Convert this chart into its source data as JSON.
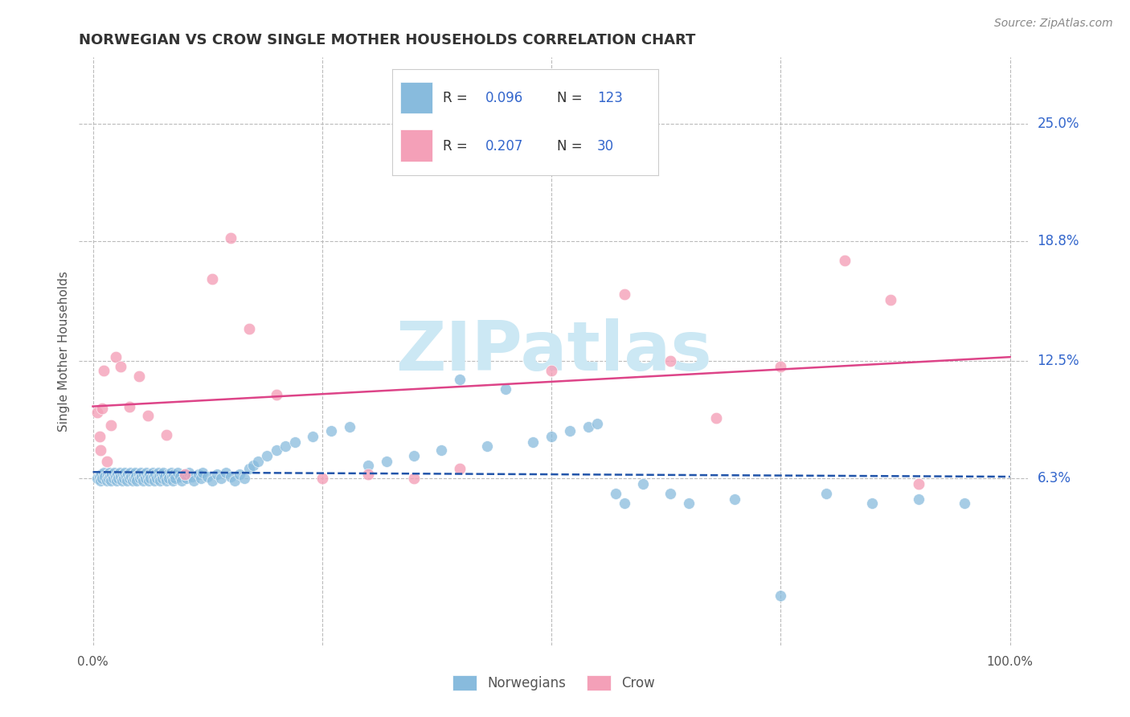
{
  "title": "NORWEGIAN VS CROW SINGLE MOTHER HOUSEHOLDS CORRELATION CHART",
  "source": "Source: ZipAtlas.com",
  "ylabel": "Single Mother Households",
  "norwegian_R": "0.096",
  "norwegian_N": "123",
  "crow_R": "0.207",
  "crow_N": "30",
  "norwegian_color": "#88bbdd",
  "crow_color": "#f4a0b8",
  "norwegian_line_color": "#2255aa",
  "crow_line_color": "#dd4488",
  "right_label_color": "#3366cc",
  "background_color": "#ffffff",
  "grid_color": "#bbbbbb",
  "watermark_color": "#cce8f4",
  "ytick_values": [
    0.063,
    0.125,
    0.188,
    0.25
  ],
  "ytick_labels": [
    "6.3%",
    "12.5%",
    "18.8%",
    "25.0%"
  ],
  "norwegian_x": [
    0.005,
    0.007,
    0.008,
    0.009,
    0.01,
    0.012,
    0.013,
    0.015,
    0.016,
    0.017,
    0.018,
    0.019,
    0.02,
    0.021,
    0.022,
    0.023,
    0.025,
    0.026,
    0.027,
    0.028,
    0.029,
    0.03,
    0.032,
    0.033,
    0.034,
    0.035,
    0.036,
    0.037,
    0.038,
    0.04,
    0.041,
    0.042,
    0.043,
    0.044,
    0.045,
    0.046,
    0.047,
    0.048,
    0.05,
    0.051,
    0.052,
    0.053,
    0.055,
    0.056,
    0.057,
    0.058,
    0.06,
    0.061,
    0.062,
    0.063,
    0.065,
    0.066,
    0.067,
    0.068,
    0.07,
    0.071,
    0.072,
    0.073,
    0.075,
    0.076,
    0.077,
    0.078,
    0.08,
    0.082,
    0.083,
    0.085,
    0.086,
    0.087,
    0.088,
    0.09,
    0.092,
    0.095,
    0.097,
    0.1,
    0.102,
    0.105,
    0.108,
    0.11,
    0.115,
    0.118,
    0.12,
    0.125,
    0.13,
    0.135,
    0.14,
    0.145,
    0.15,
    0.155,
    0.16,
    0.165,
    0.17,
    0.175,
    0.18,
    0.19,
    0.2,
    0.21,
    0.22,
    0.24,
    0.26,
    0.28,
    0.3,
    0.32,
    0.35,
    0.38,
    0.4,
    0.43,
    0.45,
    0.48,
    0.5,
    0.52,
    0.54,
    0.55,
    0.57,
    0.58,
    0.6,
    0.63,
    0.65,
    0.7,
    0.75,
    0.8,
    0.85,
    0.9,
    0.95
  ],
  "norwegian_y": [
    0.063,
    0.064,
    0.062,
    0.065,
    0.063,
    0.066,
    0.064,
    0.062,
    0.065,
    0.063,
    0.066,
    0.064,
    0.062,
    0.065,
    0.063,
    0.066,
    0.064,
    0.062,
    0.065,
    0.063,
    0.066,
    0.064,
    0.062,
    0.065,
    0.063,
    0.066,
    0.064,
    0.062,
    0.065,
    0.063,
    0.066,
    0.064,
    0.062,
    0.065,
    0.063,
    0.066,
    0.064,
    0.062,
    0.065,
    0.063,
    0.066,
    0.064,
    0.062,
    0.065,
    0.063,
    0.066,
    0.064,
    0.062,
    0.065,
    0.063,
    0.066,
    0.064,
    0.062,
    0.065,
    0.063,
    0.066,
    0.064,
    0.062,
    0.065,
    0.063,
    0.066,
    0.064,
    0.062,
    0.065,
    0.063,
    0.066,
    0.064,
    0.062,
    0.065,
    0.063,
    0.066,
    0.064,
    0.062,
    0.065,
    0.063,
    0.066,
    0.064,
    0.062,
    0.065,
    0.063,
    0.066,
    0.064,
    0.062,
    0.065,
    0.063,
    0.066,
    0.064,
    0.062,
    0.065,
    0.063,
    0.068,
    0.07,
    0.072,
    0.075,
    0.078,
    0.08,
    0.082,
    0.085,
    0.088,
    0.09,
    0.07,
    0.072,
    0.075,
    0.078,
    0.115,
    0.08,
    0.11,
    0.082,
    0.085,
    0.088,
    0.09,
    0.092,
    0.055,
    0.05,
    0.06,
    0.055,
    0.05,
    0.052,
    0.001,
    0.055,
    0.05,
    0.052,
    0.05
  ],
  "crow_x": [
    0.005,
    0.007,
    0.008,
    0.01,
    0.012,
    0.015,
    0.02,
    0.025,
    0.03,
    0.04,
    0.05,
    0.06,
    0.08,
    0.1,
    0.13,
    0.15,
    0.17,
    0.2,
    0.25,
    0.3,
    0.35,
    0.4,
    0.5,
    0.58,
    0.63,
    0.68,
    0.75,
    0.82,
    0.87,
    0.9
  ],
  "crow_y": [
    0.098,
    0.085,
    0.078,
    0.1,
    0.12,
    0.072,
    0.091,
    0.127,
    0.122,
    0.101,
    0.117,
    0.096,
    0.086,
    0.065,
    0.168,
    0.19,
    0.142,
    0.107,
    0.063,
    0.065,
    0.063,
    0.068,
    0.12,
    0.16,
    0.125,
    0.095,
    0.122,
    0.178,
    0.157,
    0.06
  ]
}
